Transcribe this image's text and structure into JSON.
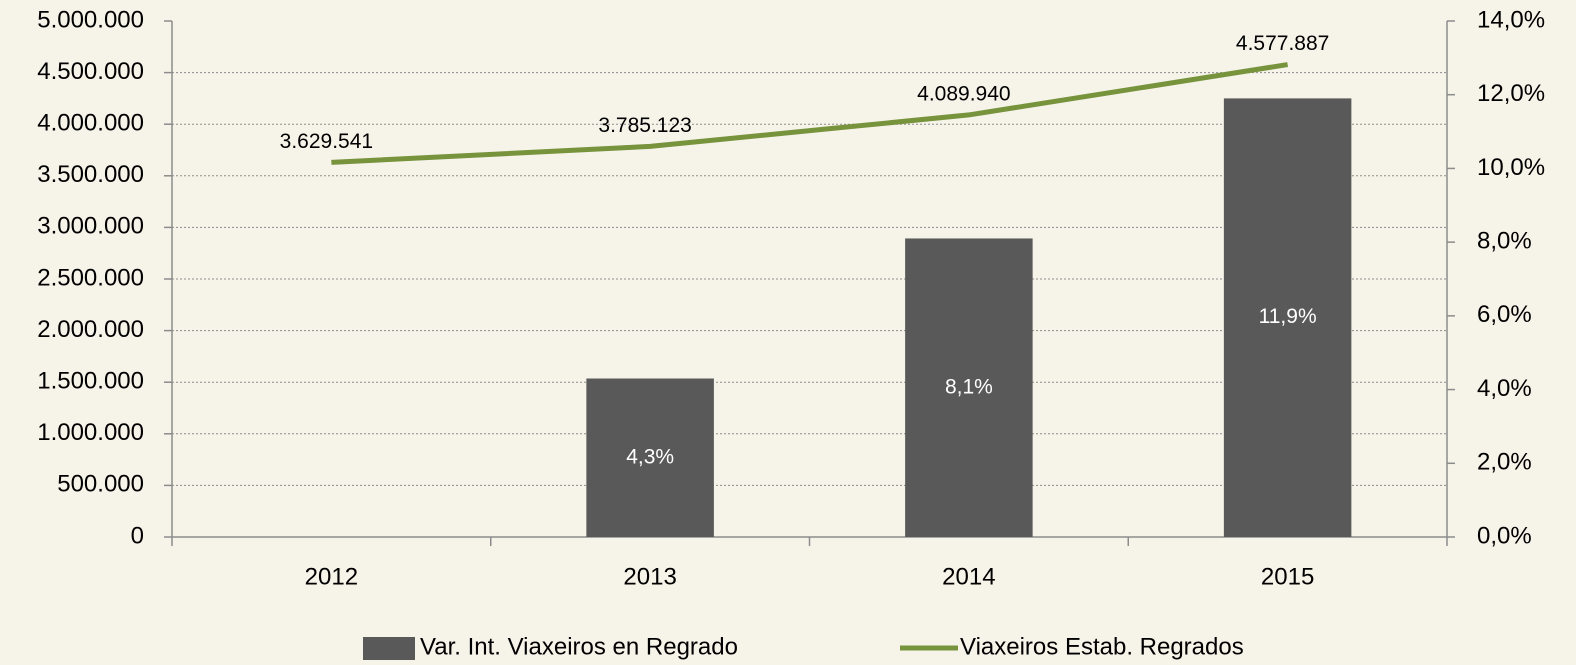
{
  "chart_data": {
    "type": "bar_line",
    "categories": [
      "2012",
      "2013",
      "2014",
      "2015"
    ],
    "series": [
      {
        "name": "Var. Int. Viaxeiros en Regrado",
        "type": "bar",
        "axis": "y2",
        "color": "#595959",
        "values": [
          null,
          4.3,
          8.1,
          11.9
        ],
        "value_labels": [
          null,
          "4,3%",
          "8,1%",
          "11,9%"
        ]
      },
      {
        "name": "Viaxeiros Estab. Regrados",
        "type": "line",
        "axis": "y",
        "color": "#77933c",
        "values": [
          3629541,
          3785123,
          4089940,
          4577887
        ],
        "value_labels": [
          "3.629.541",
          "3.785.123",
          "4.089.940",
          "4.577.887"
        ]
      }
    ],
    "ylim": [
      0,
      5000000
    ],
    "yticks": [
      0,
      {
        "value": 500000,
        "label": "500.000"
      },
      {
        "value": 1000000,
        "label": "1.000.000"
      },
      {
        "value": 1500000,
        "label": "1.500.000"
      },
      {
        "value": 2000000,
        "label": "2.000.000"
      },
      {
        "value": 2500000,
        "label": "2.500.000"
      },
      {
        "value": 3000000,
        "label": "3.000.000"
      },
      {
        "value": 3500000,
        "label": "3.500.000"
      },
      {
        "value": 4000000,
        "label": "4.000.000"
      },
      {
        "value": 4500000,
        "label": "4.500.000"
      },
      {
        "value": 5000000,
        "label": "5.000.000"
      }
    ],
    "y2lim": [
      0,
      14
    ],
    "y2ticks": [
      {
        "value": 0,
        "label": "0,0%"
      },
      {
        "value": 2,
        "label": "2,0%"
      },
      {
        "value": 4,
        "label": "4,0%"
      },
      {
        "value": 6,
        "label": "6,0%"
      },
      {
        "value": 8,
        "label": "8,0%"
      },
      {
        "value": 10,
        "label": "10,0%"
      },
      {
        "value": 12,
        "label": "12,0%"
      },
      {
        "value": 14,
        "label": "14,0%"
      }
    ],
    "grid": true,
    "legend": "bottom"
  }
}
